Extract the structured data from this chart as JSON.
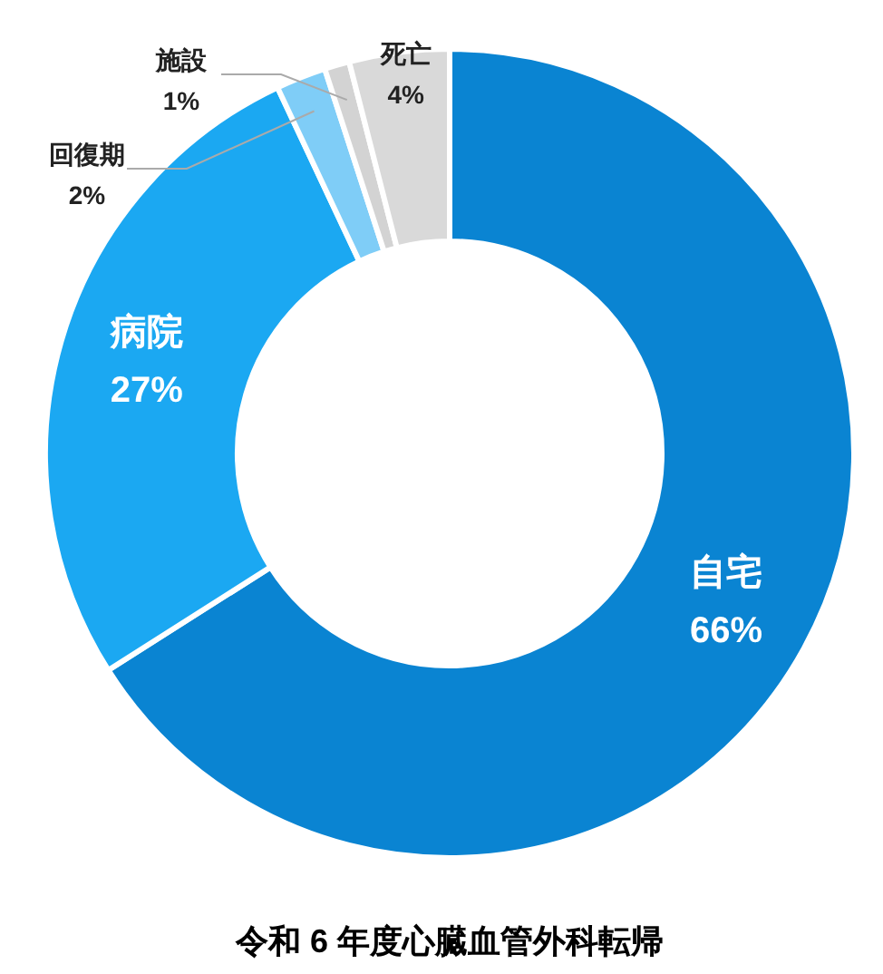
{
  "chart_data": {
    "type": "donut",
    "title": "令和 6 年度心臓血管外科転帰",
    "categories": [
      "自宅",
      "病院",
      "回復期",
      "施設",
      "死亡"
    ],
    "values": [
      66,
      27,
      2,
      1,
      4
    ],
    "colors": [
      "#0a84d2",
      "#1ba8f2",
      "#7fcdf7",
      "#d3d3d3",
      "#d9d9d9"
    ],
    "value_labels": [
      "66%",
      "27%",
      "2%",
      "1%",
      "4%"
    ]
  }
}
